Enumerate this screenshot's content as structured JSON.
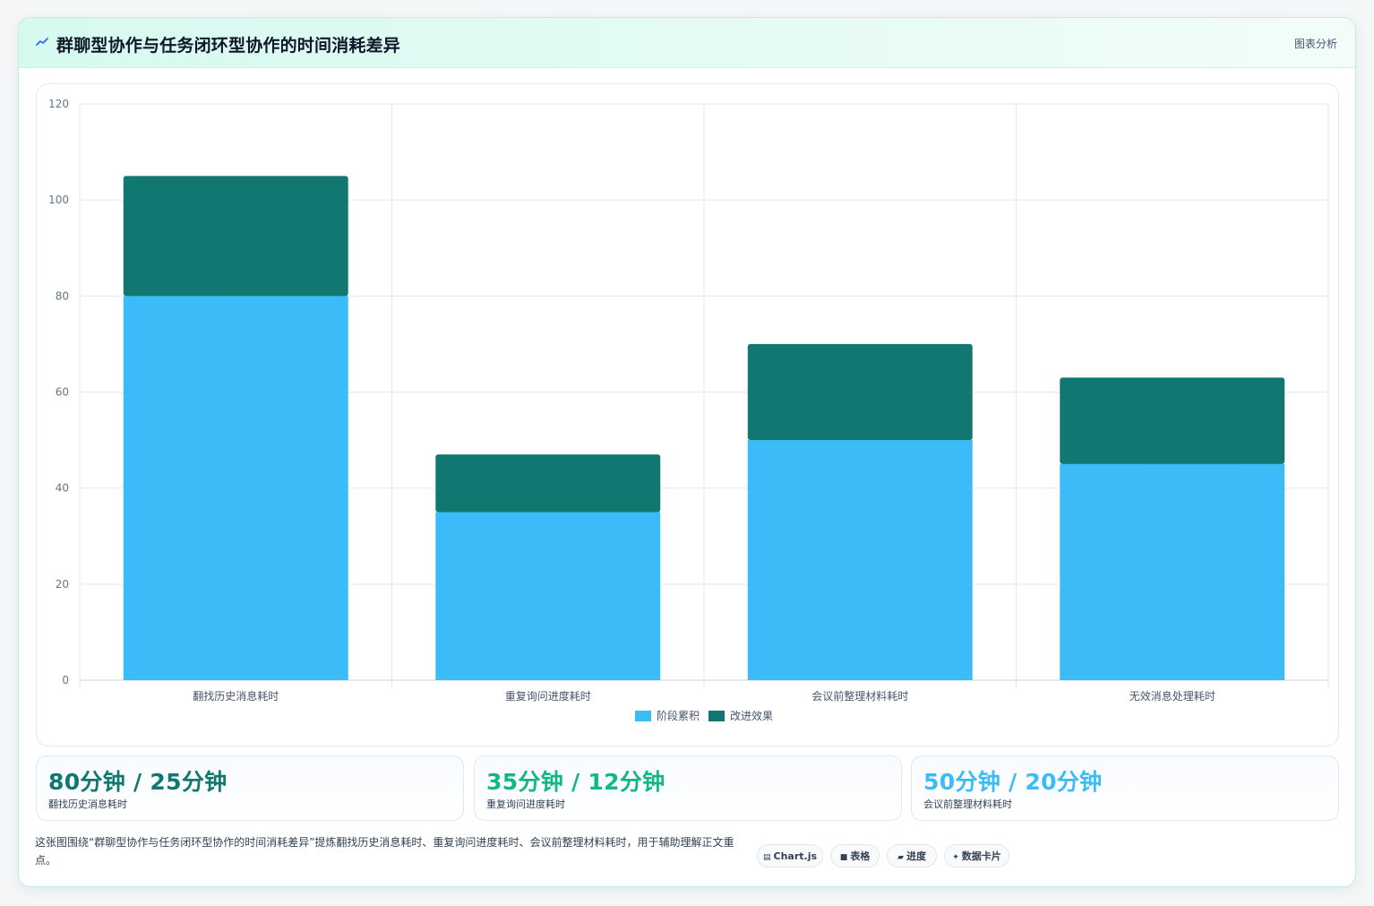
{
  "header": {
    "title": "群聊型协作与任务闭环型协作的时间消耗差异",
    "title_icon": "trend-icon",
    "link": "图表分析"
  },
  "chart_data": {
    "type": "bar",
    "stacked": true,
    "categories": [
      "翻找历史消息耗时",
      "重复询问进度耗时",
      "会议前整理材料耗时",
      "无效消息处理耗时"
    ],
    "series": [
      {
        "name": "阶段累积",
        "values": [
          80,
          35,
          50,
          45
        ],
        "color": "#3bbbf8"
      },
      {
        "name": "改进效果",
        "values": [
          25,
          12,
          20,
          18
        ],
        "color": "#107870"
      }
    ],
    "ylim": [
      0,
      120
    ],
    "yticks": [
      "0",
      "20",
      "40",
      "60",
      "80",
      "100",
      "120"
    ],
    "grid": true,
    "legend_position": "bottom",
    "xlabel": "",
    "ylabel": ""
  },
  "stats": [
    {
      "value": "80分钟 / 25分钟",
      "label": "翻找历史消息耗时",
      "color": "#107870"
    },
    {
      "value": "35分钟 / 12分钟",
      "label": "重复询问进度耗时",
      "color": "#10b981"
    },
    {
      "value": "50分钟 / 20分钟",
      "label": "会议前整理材料耗时",
      "color": "#3bbbf8"
    }
  ],
  "caption": "这张图围绕“群聊型协作与任务闭环型协作的时间消耗差异”提炼翻找历史消息耗时、重复询问进度耗时、会议前整理材料耗时，用于辅助理解正文重点。",
  "tags": [
    {
      "icon": "chart-icon",
      "glyph": "▤",
      "label": "Chart.js"
    },
    {
      "icon": "table-icon",
      "glyph": "■",
      "label": "表格"
    },
    {
      "icon": "progress-icon",
      "glyph": "▰",
      "label": "进度"
    },
    {
      "icon": "card-icon",
      "glyph": "✦",
      "label": "数据卡片"
    }
  ]
}
